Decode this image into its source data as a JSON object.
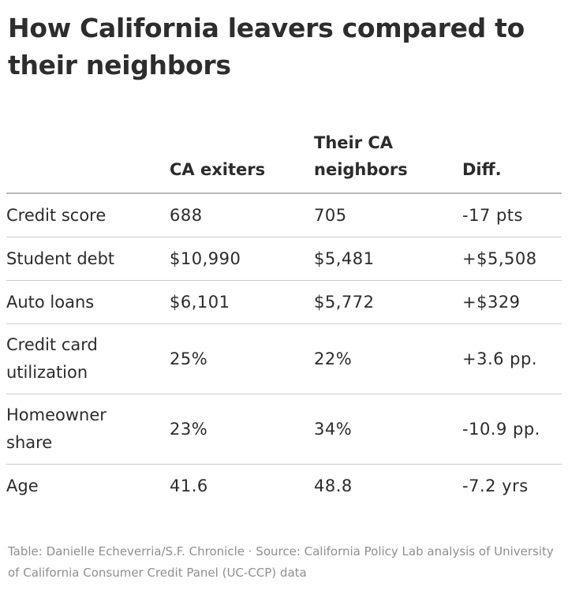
{
  "chart_data": {
    "type": "table",
    "title": "How California leavers compared to their neighbors",
    "columns": [
      "",
      "CA exiters",
      "Their CA neighbors",
      "Diff."
    ],
    "rows": [
      {
        "label": "Credit score",
        "ca_exiters": "688",
        "ca_neighbors": "705",
        "diff": "-17 pts"
      },
      {
        "label": "Student debt",
        "ca_exiters": "$10,990",
        "ca_neighbors": "$5,481",
        "diff": "+$5,508"
      },
      {
        "label": "Auto loans",
        "ca_exiters": "$6,101",
        "ca_neighbors": "$5,772",
        "diff": "+$329"
      },
      {
        "label": "Credit card utilization",
        "ca_exiters": "25%",
        "ca_neighbors": "22%",
        "diff": "+3.6 pp."
      },
      {
        "label": "Homeowner share",
        "ca_exiters": "23%",
        "ca_neighbors": "34%",
        "diff": "-10.9 pp."
      },
      {
        "label": "Age",
        "ca_exiters": "41.6",
        "ca_neighbors": "48.8",
        "diff": "-7.2 yrs"
      }
    ],
    "footer": "Table: Danielle Echeverria/S.F. Chronicle · Source: California Policy Lab analysis of University of California Consumer Credit Panel (UC-CCP) data"
  }
}
